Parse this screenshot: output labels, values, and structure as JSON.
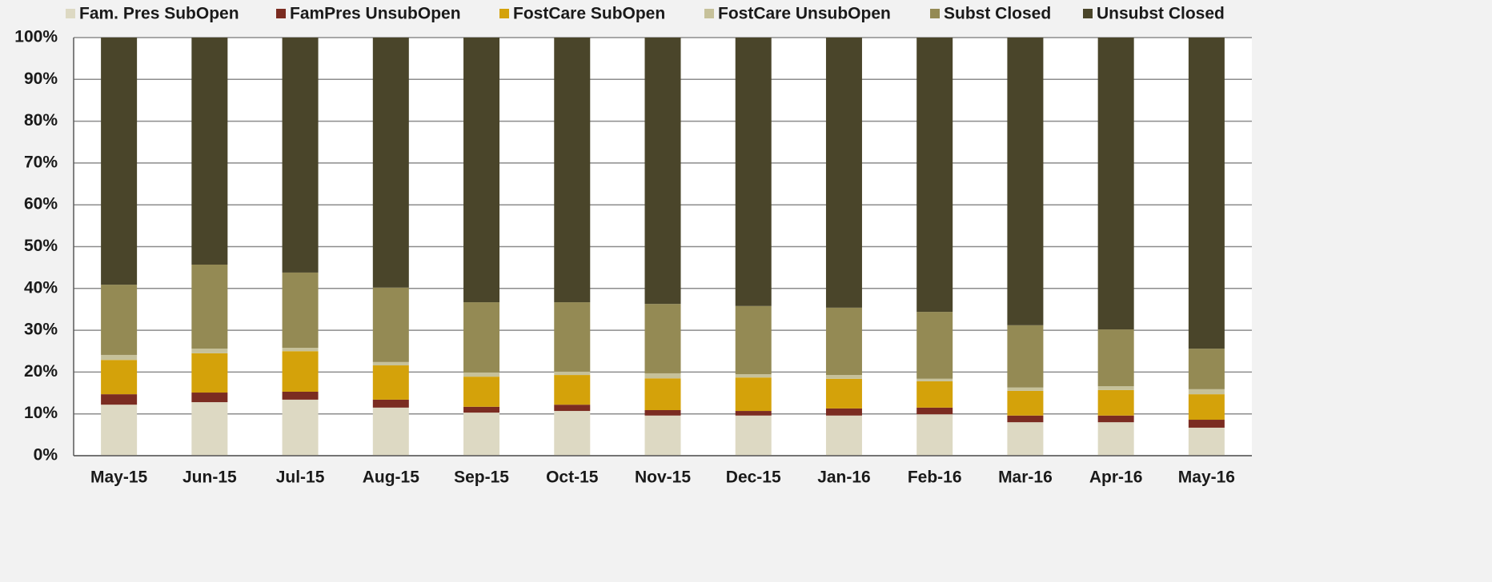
{
  "chart_data": {
    "type": "stacked_bar_percent",
    "categories": [
      "May-15",
      "Jun-15",
      "Jul-15",
      "Aug-15",
      "Sep-15",
      "Oct-15",
      "Nov-15",
      "Dec-15",
      "Jan-16",
      "Feb-16",
      "Mar-16",
      "Apr-16",
      "May-16"
    ],
    "series": [
      {
        "name": "Fam. Pres SubOpen",
        "color": "#ddd9c3",
        "values": [
          12.2,
          12.8,
          13.4,
          11.5,
          10.3,
          10.7,
          9.6,
          9.6,
          9.6,
          9.9,
          8.0,
          8.0,
          6.7
        ]
      },
      {
        "name": "FamPres UnsubOpen",
        "color": "#7b2c21",
        "values": [
          2.5,
          2.3,
          1.9,
          1.9,
          1.4,
          1.5,
          1.3,
          1.1,
          1.7,
          1.6,
          1.6,
          1.6,
          1.9
        ]
      },
      {
        "name": "FostCare SubOpen",
        "color": "#d4a20a",
        "values": [
          8.2,
          9.4,
          9.7,
          8.2,
          7.2,
          7.1,
          7.6,
          8.0,
          7.1,
          6.3,
          5.9,
          6.1,
          6.1
        ]
      },
      {
        "name": "FostCare UnsubOpen",
        "color": "#c6c19a",
        "values": [
          1.2,
          1.1,
          0.8,
          0.8,
          1.0,
          0.8,
          1.2,
          0.8,
          0.9,
          0.6,
          0.8,
          0.9,
          1.2
        ]
      },
      {
        "name": "Subst Closed",
        "color": "#948a54",
        "values": [
          16.8,
          20.1,
          18.0,
          17.8,
          16.8,
          16.6,
          16.6,
          16.3,
          16.1,
          16.0,
          14.9,
          13.6,
          9.7
        ]
      },
      {
        "name": "Unsubst Closed",
        "color": "#4a452a",
        "values": [
          59.1,
          54.3,
          56.2,
          59.8,
          63.3,
          63.3,
          63.7,
          64.2,
          64.6,
          65.6,
          68.8,
          69.8,
          74.4
        ]
      }
    ],
    "ylim": [
      0,
      100
    ],
    "yticks": [
      {
        "value": 0,
        "label": "0%"
      },
      {
        "value": 10,
        "label": "10%"
      },
      {
        "value": 20,
        "label": "20%"
      },
      {
        "value": 30,
        "label": "30%"
      },
      {
        "value": 40,
        "label": "40%"
      },
      {
        "value": 50,
        "label": "50%"
      },
      {
        "value": 60,
        "label": "60%"
      },
      {
        "value": 70,
        "label": "70%"
      },
      {
        "value": 80,
        "label": "80%"
      },
      {
        "value": 90,
        "label": "90%"
      },
      {
        "value": 100,
        "label": "100%"
      }
    ],
    "grid": true,
    "legend": "top"
  }
}
